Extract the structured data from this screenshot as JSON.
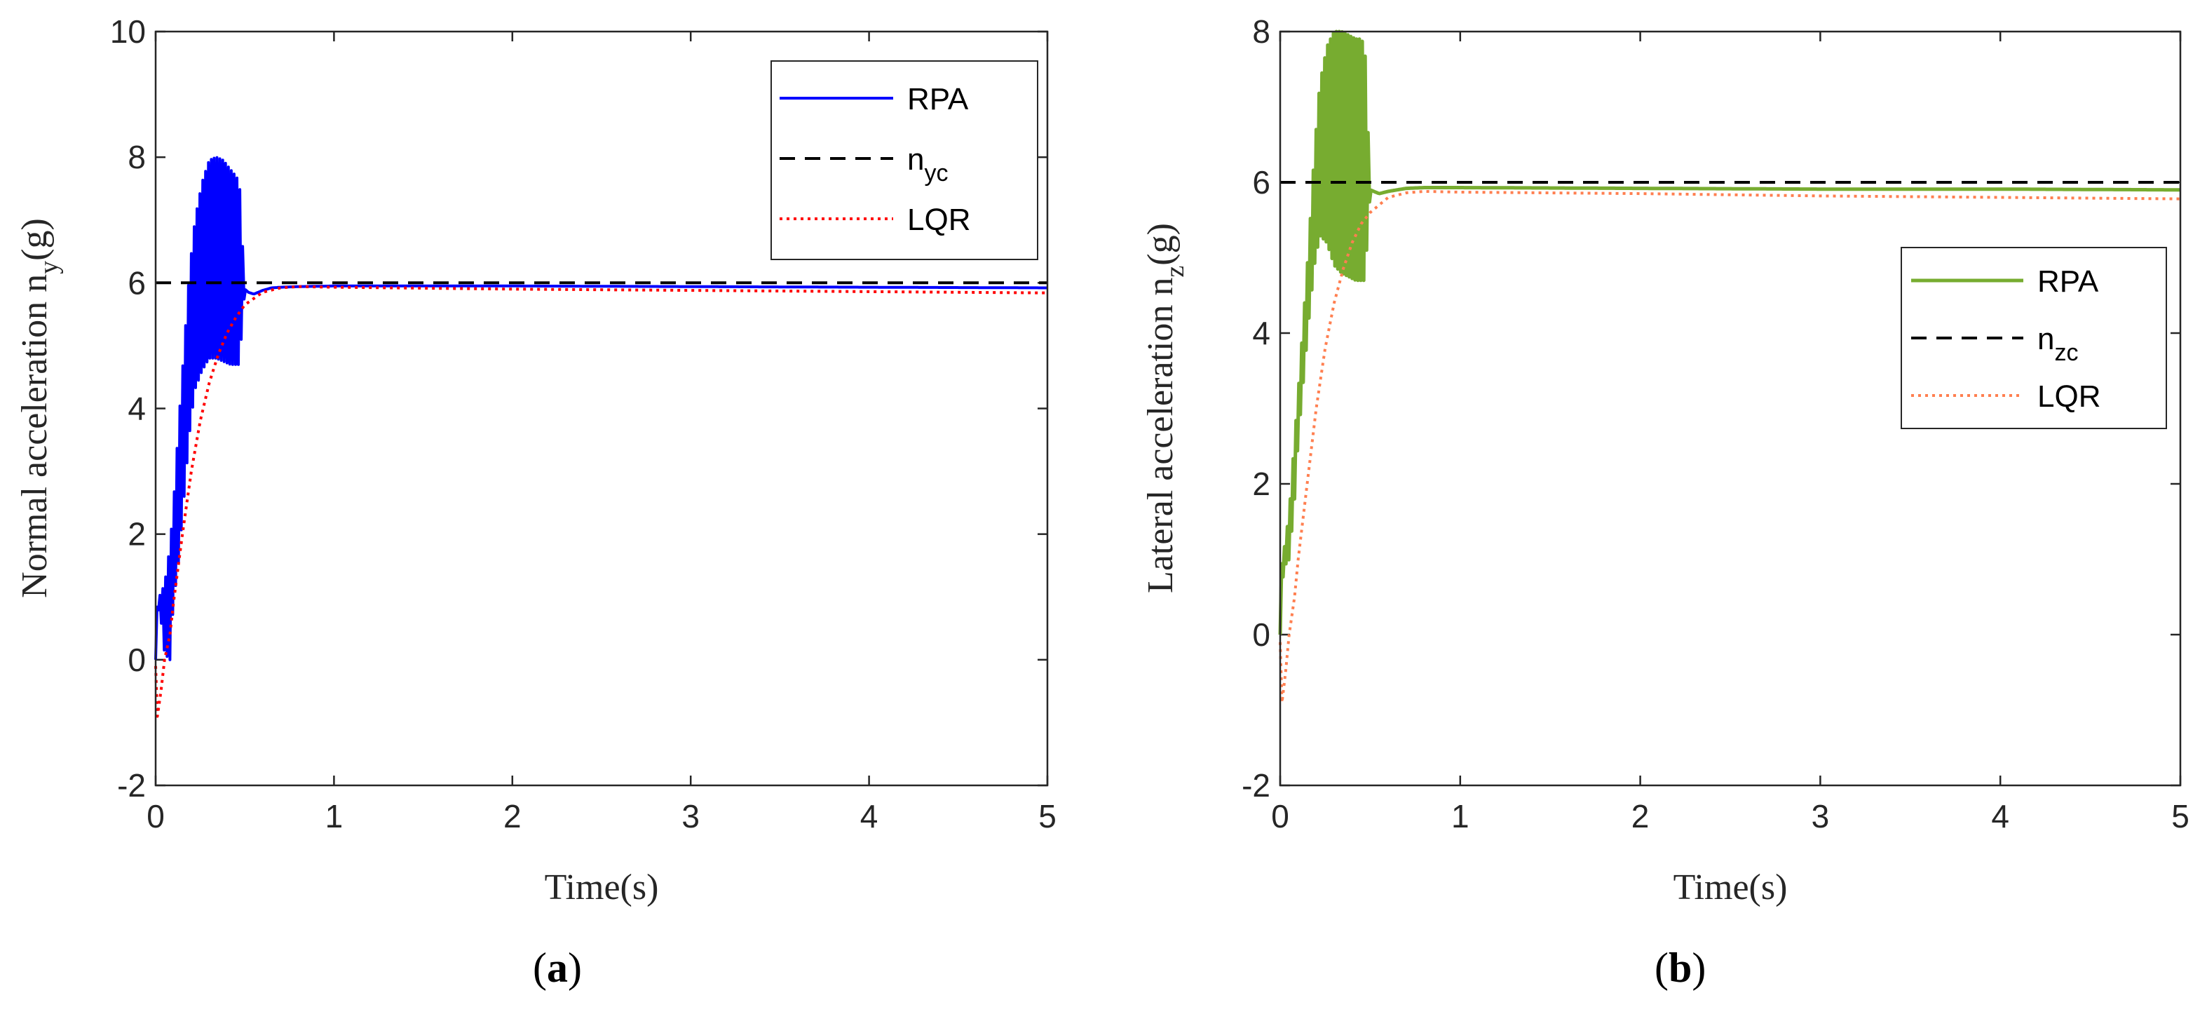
{
  "chart_data": [
    {
      "type": "line",
      "panel_letter": "a",
      "xlabel": "Time(s)",
      "ylabel_main": "Normal acceleration n",
      "ylabel_sub": "y",
      "ylabel_tail": "(g)",
      "xlim": [
        0,
        5
      ],
      "ylim": [
        -2,
        10
      ],
      "xticks": [
        0,
        1,
        2,
        3,
        4,
        5
      ],
      "yticks": [
        -2,
        0,
        2,
        4,
        6,
        8,
        10
      ],
      "legend_position": "top-right",
      "legend": [
        {
          "label": "RPA",
          "sub": "",
          "color": "#0000ff",
          "style": "solid"
        },
        {
          "label": "n",
          "sub": "yc",
          "color": "#000000",
          "style": "dashed"
        },
        {
          "label": "LQR",
          "sub": "",
          "color": "#ff0000",
          "style": "dotted"
        }
      ],
      "series": [
        {
          "name": "RPA",
          "color": "#0000ff",
          "style": "solid",
          "width": 4,
          "oscillating": true,
          "x": [
            0,
            0.005,
            0.02,
            0.05,
            0.08,
            0.1,
            0.13,
            0.16,
            0.19,
            0.22,
            0.26,
            0.3,
            0.34,
            0.38,
            0.42,
            0.45,
            0.47,
            0.5,
            0.52,
            0.55,
            0.6,
            0.65,
            0.7,
            0.8,
            1.0,
            2.0,
            3.0,
            4.0,
            5.0
          ],
          "upper": [
            0,
            0.8,
            1.0,
            1.2,
            1.8,
            2.5,
            3.8,
            5.0,
            6.2,
            7.0,
            7.6,
            7.95,
            8.0,
            7.95,
            7.8,
            7.7,
            7.6,
            5.9,
            5.85,
            5.82,
            5.88,
            5.92,
            5.93,
            5.94,
            5.95,
            5.95,
            5.94,
            5.93,
            5.92
          ],
          "lower": [
            0,
            0.5,
            0.9,
            0.1,
            0.0,
            0.9,
            1.6,
            2.6,
            3.6,
            4.3,
            4.6,
            4.8,
            4.8,
            4.75,
            4.7,
            4.7,
            4.7,
            5.9,
            5.85,
            5.82,
            5.88,
            5.92,
            5.93,
            5.94,
            5.95,
            5.95,
            5.94,
            5.93,
            5.92
          ]
        },
        {
          "name": "n_yc",
          "color": "#000000",
          "style": "dashed",
          "width": 4,
          "x": [
            0,
            5
          ],
          "y": [
            6,
            6
          ]
        },
        {
          "name": "LQR",
          "color": "#ff0000",
          "style": "dotted",
          "width": 4,
          "x": [
            0,
            0.01,
            0.03,
            0.05,
            0.08,
            0.1,
            0.15,
            0.2,
            0.25,
            0.3,
            0.35,
            0.4,
            0.45,
            0.5,
            0.6,
            0.7,
            0.8,
            1.0,
            2.0,
            3.0,
            4.0,
            5.0
          ],
          "y": [
            -0.1,
            -0.9,
            -0.5,
            0.0,
            0.4,
            0.9,
            2.0,
            3.0,
            3.8,
            4.4,
            4.85,
            5.2,
            5.45,
            5.65,
            5.85,
            5.92,
            5.94,
            5.93,
            5.9,
            5.88,
            5.86,
            5.84
          ]
        }
      ]
    },
    {
      "type": "line",
      "panel_letter": "b",
      "xlabel": "Time(s)",
      "ylabel_main": "Lateral acceleration n",
      "ylabel_sub": "z",
      "ylabel_tail": "(g)",
      "xlim": [
        0,
        5
      ],
      "ylim": [
        -2,
        8
      ],
      "xticks": [
        0,
        1,
        2,
        3,
        4,
        5
      ],
      "yticks": [
        -2,
        0,
        2,
        4,
        6,
        8
      ],
      "legend_position": "right",
      "legend": [
        {
          "label": "RPA",
          "sub": "",
          "color": "#77ac30",
          "style": "solid"
        },
        {
          "label": "n",
          "sub": "zc",
          "color": "#000000",
          "style": "dashed"
        },
        {
          "label": "LQR",
          "sub": "",
          "color": "#ff7f50",
          "style": "dotted"
        }
      ],
      "series": [
        {
          "name": "RPA",
          "color": "#77ac30",
          "style": "solid",
          "width": 5,
          "oscillating": true,
          "x": [
            0,
            0.005,
            0.02,
            0.05,
            0.08,
            0.1,
            0.13,
            0.16,
            0.19,
            0.22,
            0.26,
            0.3,
            0.34,
            0.38,
            0.42,
            0.45,
            0.47,
            0.5,
            0.55,
            0.6,
            0.7,
            0.8,
            1.0,
            2.0,
            3.0,
            4.0,
            5.0
          ],
          "upper": [
            0,
            0.9,
            1.1,
            1.6,
            2.6,
            3.2,
            4.2,
            5.2,
            6.4,
            7.3,
            7.8,
            8.0,
            8.0,
            7.95,
            7.9,
            7.9,
            7.8,
            5.9,
            5.85,
            5.88,
            5.92,
            5.93,
            5.93,
            5.92,
            5.91,
            5.91,
            5.9
          ],
          "lower": [
            0,
            0.4,
            0.9,
            1.0,
            1.8,
            2.6,
            3.4,
            4.2,
            4.9,
            5.3,
            5.2,
            4.9,
            4.8,
            4.75,
            4.7,
            4.7,
            4.7,
            5.9,
            5.85,
            5.88,
            5.92,
            5.93,
            5.93,
            5.92,
            5.91,
            5.91,
            5.9
          ]
        },
        {
          "name": "n_zc",
          "color": "#000000",
          "style": "dashed",
          "width": 4,
          "x": [
            0,
            5
          ],
          "y": [
            6,
            6
          ]
        },
        {
          "name": "LQR",
          "color": "#ff7f50",
          "style": "dotted",
          "width": 4,
          "x": [
            0,
            0.01,
            0.03,
            0.05,
            0.08,
            0.1,
            0.15,
            0.2,
            0.25,
            0.3,
            0.35,
            0.4,
            0.45,
            0.5,
            0.6,
            0.7,
            0.8,
            1.0,
            2.0,
            3.0,
            4.0,
            5.0
          ],
          "y": [
            -0.1,
            -0.9,
            -0.5,
            0.0,
            0.5,
            1.0,
            2.0,
            3.0,
            3.8,
            4.4,
            4.85,
            5.2,
            5.45,
            5.6,
            5.8,
            5.86,
            5.88,
            5.87,
            5.85,
            5.82,
            5.8,
            5.78
          ]
        }
      ]
    }
  ]
}
